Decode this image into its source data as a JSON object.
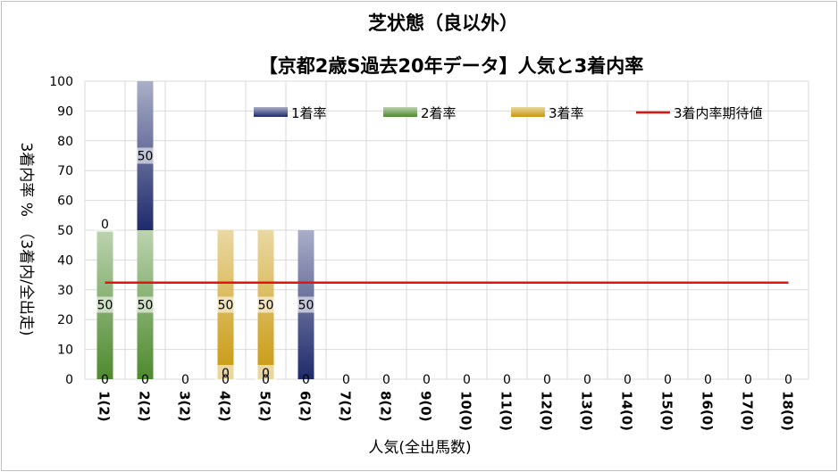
{
  "chart_data": {
    "type": "bar",
    "title": "芝状態（良以外）",
    "subtitle": "【京都2歳S過去20年データ】人気と3着内率",
    "xlabel": "人気(全出馬数)",
    "ylabel": "3着内率 %　（3着内/全出走)",
    "ylim": [
      0,
      100
    ],
    "yticks": [
      "0",
      "10",
      "20",
      "30",
      "40",
      "50",
      "60",
      "70",
      "80",
      "90",
      "100"
    ],
    "categories": [
      "1(2)",
      "2(2)",
      "3(2)",
      "4(2)",
      "5(2)",
      "6(2)",
      "7(2)",
      "8(2)",
      "9(0)",
      "10(0)",
      "11(0)",
      "12(0)",
      "13(0)",
      "14(0)",
      "15(0)",
      "16(0)",
      "17(0)",
      "18(0)"
    ],
    "series": [
      {
        "name": "1着率",
        "color": "#1f2a6b",
        "values": [
          0,
          50,
          0,
          0,
          0,
          50,
          0,
          0,
          0,
          0,
          0,
          0,
          0,
          0,
          0,
          0,
          0,
          0
        ]
      },
      {
        "name": "2着率",
        "color": "#4e8a2e",
        "values": [
          50,
          50,
          0,
          0,
          0,
          0,
          0,
          0,
          0,
          0,
          0,
          0,
          0,
          0,
          0,
          0,
          0,
          0
        ]
      },
      {
        "name": "3着率",
        "color": "#c8980c",
        "values": [
          0,
          0,
          0,
          50,
          50,
          0,
          0,
          0,
          0,
          0,
          0,
          0,
          0,
          0,
          0,
          0,
          0,
          0
        ]
      }
    ],
    "data_labels": [
      {
        "series": "2着率",
        "category": "1(2)",
        "text": "50"
      },
      {
        "series": "3着率",
        "category": "1(2)",
        "text": "0"
      },
      {
        "series": "1着率",
        "category": "2(2)",
        "text": "50"
      },
      {
        "series": "2着率",
        "category": "2(2)",
        "text": "50"
      },
      {
        "series": "3着率",
        "category": "4(2)",
        "text": "50"
      },
      {
        "series": "2着率",
        "category": "4(2)",
        "text": "0"
      },
      {
        "series": "3着率",
        "category": "5(2)",
        "text": "50"
      },
      {
        "series": "2着率",
        "category": "5(2)",
        "text": "0"
      },
      {
        "series": "1着率",
        "category": "6(2)",
        "text": "50"
      }
    ],
    "bottom_labels": [
      "0",
      "0",
      "0",
      "0",
      "0",
      "0",
      "0",
      "0",
      "0",
      "0",
      "0",
      "0",
      "0",
      "0",
      "0",
      "0",
      "0",
      "0"
    ],
    "expected_line": {
      "name": "3着内率期待値",
      "value": 32.4,
      "color": "#e0150f"
    },
    "grid": true,
    "legend_position": "top-right"
  }
}
